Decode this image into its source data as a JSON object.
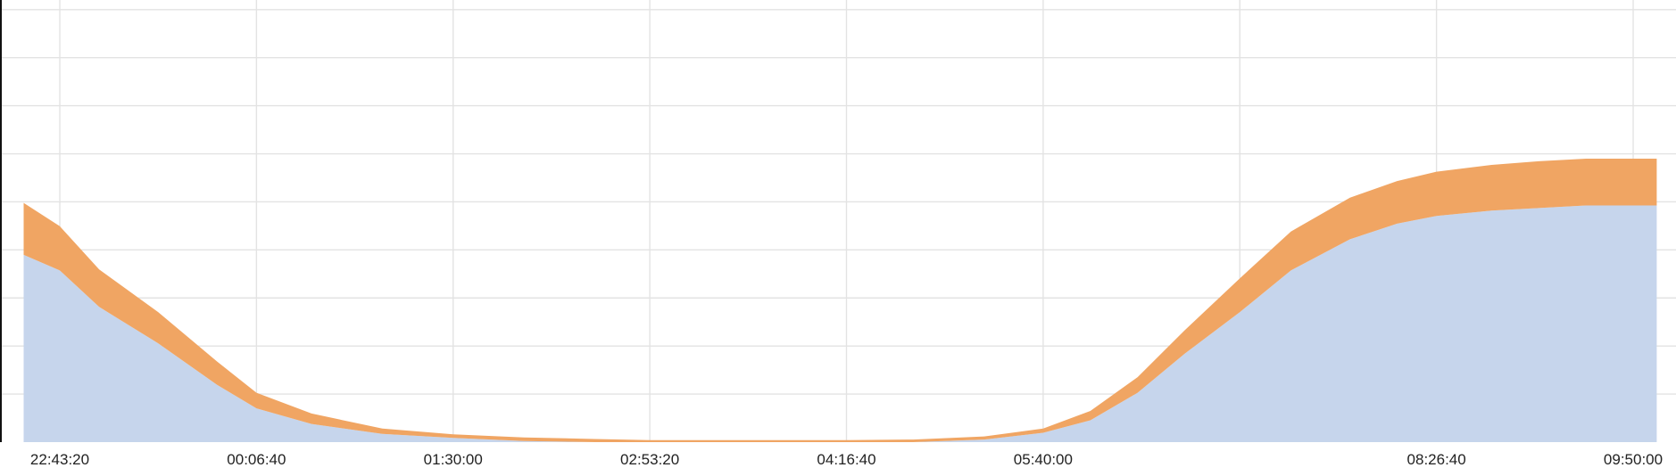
{
  "chart_data": {
    "type": "area",
    "stacked": true,
    "title": "",
    "xlabel": "",
    "ylabel": "",
    "grid": true,
    "legend": "none",
    "x_ticks": [
      "22:43:20",
      "00:06:40",
      "01:30:00",
      "02:53:20",
      "04:16:40",
      "05:40:00",
      "08:26:40",
      "09:50:00"
    ],
    "x_unlabeled_gridlines": [
      "07:03:20"
    ],
    "x": [
      "22:28:00",
      "22:43:20",
      "23:00:00",
      "23:25:00",
      "23:50:00",
      "00:06:40",
      "00:30:00",
      "01:00:00",
      "01:30:00",
      "02:00:00",
      "02:30:00",
      "02:53:20",
      "03:30:00",
      "04:00:00",
      "04:16:40",
      "04:45:00",
      "05:15:00",
      "05:40:00",
      "06:00:00",
      "06:20:00",
      "06:40:00",
      "07:03:20",
      "07:25:00",
      "07:50:00",
      "08:10:00",
      "08:26:40",
      "08:50:00",
      "09:10:00",
      "09:30:00",
      "09:50:00",
      "10:00:00"
    ],
    "series": [
      {
        "color": "#c6d5ec",
        "values": [
          3.6,
          3.3,
          2.6,
          1.9,
          1.1,
          0.65,
          0.35,
          0.16,
          0.08,
          0.02,
          0.0,
          0.0,
          0.0,
          0.0,
          0.0,
          0.0,
          0.05,
          0.18,
          0.42,
          0.95,
          1.7,
          2.5,
          3.3,
          3.9,
          4.2,
          4.35,
          4.45,
          4.5,
          4.55,
          4.55,
          4.55
        ]
      },
      {
        "color": "#f0a563",
        "values": [
          1.0,
          0.85,
          0.72,
          0.6,
          0.45,
          0.3,
          0.2,
          0.1,
          0.07,
          0.07,
          0.06,
          0.04,
          0.04,
          0.04,
          0.04,
          0.05,
          0.06,
          0.08,
          0.18,
          0.3,
          0.45,
          0.65,
          0.75,
          0.8,
          0.82,
          0.85,
          0.88,
          0.9,
          0.9,
          0.9,
          0.9
        ]
      }
    ],
    "ylim": [
      0,
      8.5
    ],
    "y_gridline_count": 9,
    "colors": {
      "grid": "#e3e3e3",
      "axis": "#111111",
      "text": "#222222"
    }
  }
}
